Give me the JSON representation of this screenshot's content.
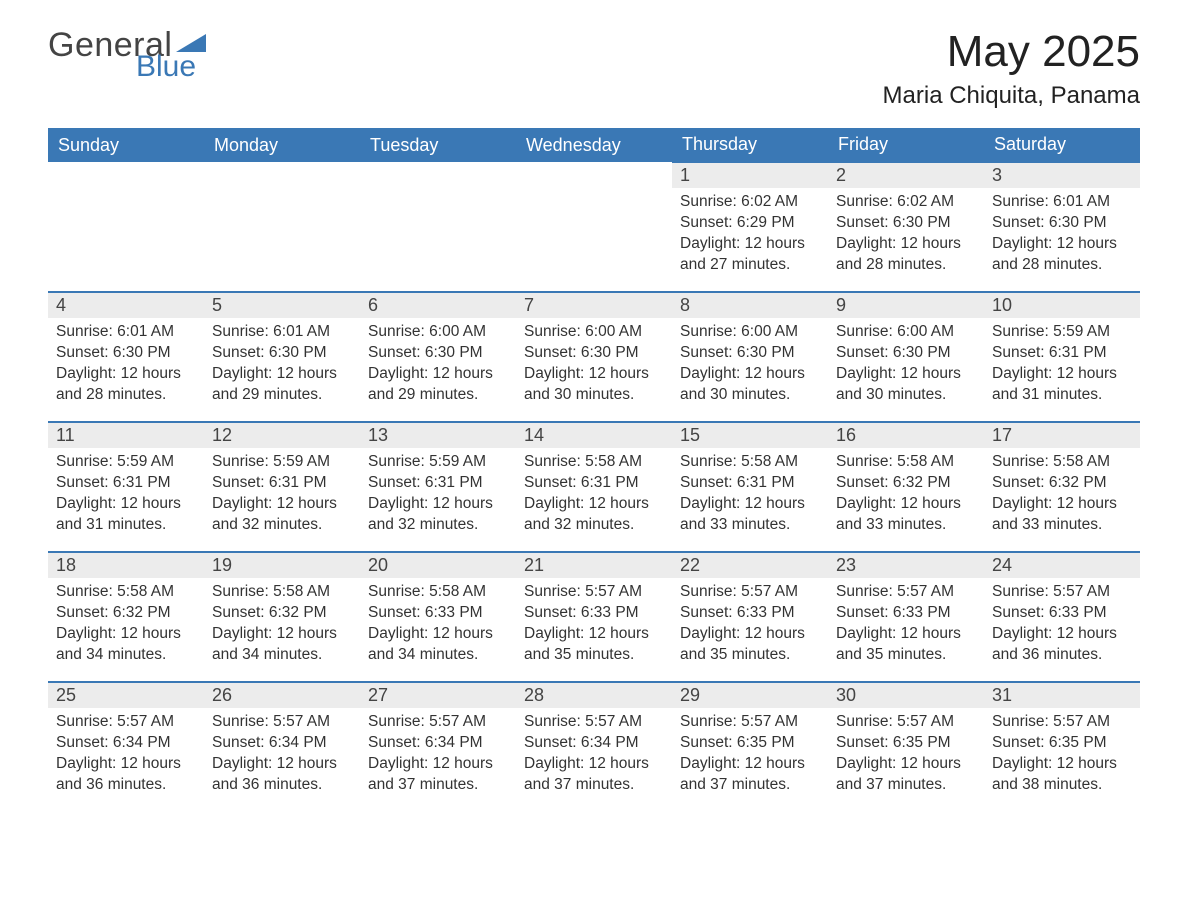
{
  "logo": {
    "word1": "General",
    "word2": "Blue",
    "triangle_color": "#3a78b5"
  },
  "title": "May 2025",
  "location": "Maria Chiquita, Panama",
  "colors": {
    "header_bg": "#3a78b5",
    "header_text": "#ffffff",
    "row_divider": "#3a78b5",
    "daynum_bg": "#ececec",
    "text": "#333333",
    "background": "#ffffff"
  },
  "weekdays": [
    "Sunday",
    "Monday",
    "Tuesday",
    "Wednesday",
    "Thursday",
    "Friday",
    "Saturday"
  ],
  "weeks": [
    [
      null,
      null,
      null,
      null,
      {
        "n": "1",
        "sunrise": "6:02 AM",
        "sunset": "6:29 PM",
        "daylight": "12 hours and 27 minutes."
      },
      {
        "n": "2",
        "sunrise": "6:02 AM",
        "sunset": "6:30 PM",
        "daylight": "12 hours and 28 minutes."
      },
      {
        "n": "3",
        "sunrise": "6:01 AM",
        "sunset": "6:30 PM",
        "daylight": "12 hours and 28 minutes."
      }
    ],
    [
      {
        "n": "4",
        "sunrise": "6:01 AM",
        "sunset": "6:30 PM",
        "daylight": "12 hours and 28 minutes."
      },
      {
        "n": "5",
        "sunrise": "6:01 AM",
        "sunset": "6:30 PM",
        "daylight": "12 hours and 29 minutes."
      },
      {
        "n": "6",
        "sunrise": "6:00 AM",
        "sunset": "6:30 PM",
        "daylight": "12 hours and 29 minutes."
      },
      {
        "n": "7",
        "sunrise": "6:00 AM",
        "sunset": "6:30 PM",
        "daylight": "12 hours and 30 minutes."
      },
      {
        "n": "8",
        "sunrise": "6:00 AM",
        "sunset": "6:30 PM",
        "daylight": "12 hours and 30 minutes."
      },
      {
        "n": "9",
        "sunrise": "6:00 AM",
        "sunset": "6:30 PM",
        "daylight": "12 hours and 30 minutes."
      },
      {
        "n": "10",
        "sunrise": "5:59 AM",
        "sunset": "6:31 PM",
        "daylight": "12 hours and 31 minutes."
      }
    ],
    [
      {
        "n": "11",
        "sunrise": "5:59 AM",
        "sunset": "6:31 PM",
        "daylight": "12 hours and 31 minutes."
      },
      {
        "n": "12",
        "sunrise": "5:59 AM",
        "sunset": "6:31 PM",
        "daylight": "12 hours and 32 minutes."
      },
      {
        "n": "13",
        "sunrise": "5:59 AM",
        "sunset": "6:31 PM",
        "daylight": "12 hours and 32 minutes."
      },
      {
        "n": "14",
        "sunrise": "5:58 AM",
        "sunset": "6:31 PM",
        "daylight": "12 hours and 32 minutes."
      },
      {
        "n": "15",
        "sunrise": "5:58 AM",
        "sunset": "6:31 PM",
        "daylight": "12 hours and 33 minutes."
      },
      {
        "n": "16",
        "sunrise": "5:58 AM",
        "sunset": "6:32 PM",
        "daylight": "12 hours and 33 minutes."
      },
      {
        "n": "17",
        "sunrise": "5:58 AM",
        "sunset": "6:32 PM",
        "daylight": "12 hours and 33 minutes."
      }
    ],
    [
      {
        "n": "18",
        "sunrise": "5:58 AM",
        "sunset": "6:32 PM",
        "daylight": "12 hours and 34 minutes."
      },
      {
        "n": "19",
        "sunrise": "5:58 AM",
        "sunset": "6:32 PM",
        "daylight": "12 hours and 34 minutes."
      },
      {
        "n": "20",
        "sunrise": "5:58 AM",
        "sunset": "6:33 PM",
        "daylight": "12 hours and 34 minutes."
      },
      {
        "n": "21",
        "sunrise": "5:57 AM",
        "sunset": "6:33 PM",
        "daylight": "12 hours and 35 minutes."
      },
      {
        "n": "22",
        "sunrise": "5:57 AM",
        "sunset": "6:33 PM",
        "daylight": "12 hours and 35 minutes."
      },
      {
        "n": "23",
        "sunrise": "5:57 AM",
        "sunset": "6:33 PM",
        "daylight": "12 hours and 35 minutes."
      },
      {
        "n": "24",
        "sunrise": "5:57 AM",
        "sunset": "6:33 PM",
        "daylight": "12 hours and 36 minutes."
      }
    ],
    [
      {
        "n": "25",
        "sunrise": "5:57 AM",
        "sunset": "6:34 PM",
        "daylight": "12 hours and 36 minutes."
      },
      {
        "n": "26",
        "sunrise": "5:57 AM",
        "sunset": "6:34 PM",
        "daylight": "12 hours and 36 minutes."
      },
      {
        "n": "27",
        "sunrise": "5:57 AM",
        "sunset": "6:34 PM",
        "daylight": "12 hours and 37 minutes."
      },
      {
        "n": "28",
        "sunrise": "5:57 AM",
        "sunset": "6:34 PM",
        "daylight": "12 hours and 37 minutes."
      },
      {
        "n": "29",
        "sunrise": "5:57 AM",
        "sunset": "6:35 PM",
        "daylight": "12 hours and 37 minutes."
      },
      {
        "n": "30",
        "sunrise": "5:57 AM",
        "sunset": "6:35 PM",
        "daylight": "12 hours and 37 minutes."
      },
      {
        "n": "31",
        "sunrise": "5:57 AM",
        "sunset": "6:35 PM",
        "daylight": "12 hours and 38 minutes."
      }
    ]
  ],
  "labels": {
    "sunrise": "Sunrise:",
    "sunset": "Sunset:",
    "daylight": "Daylight:"
  }
}
